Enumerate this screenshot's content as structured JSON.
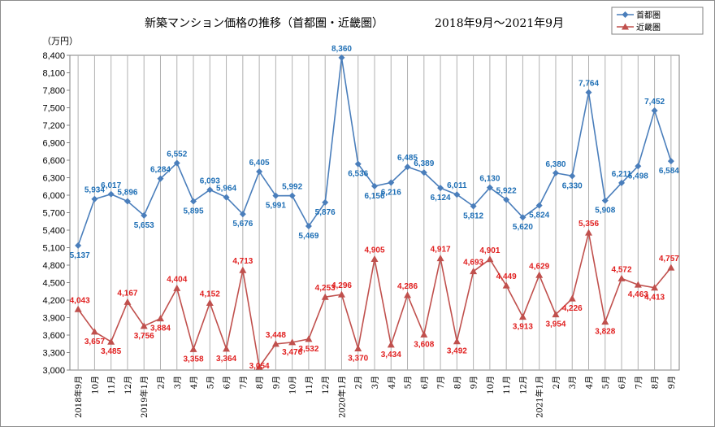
{
  "chart_data": {
    "type": "line",
    "title": "新築マンション価格の推移（首都圏・近畿圏）",
    "period": "2018年9月～2021年9月",
    "ylabel": "（万円）",
    "ylim": [
      3000,
      8400
    ],
    "yticks": [
      3000,
      3300,
      3600,
      3900,
      4200,
      4500,
      4800,
      5100,
      5400,
      5700,
      6000,
      6300,
      6600,
      6900,
      7200,
      7500,
      7800,
      8100,
      8400
    ],
    "ytick_labels": [
      "3,000",
      "3,300",
      "3,600",
      "3,900",
      "4,200",
      "4,500",
      "4,800",
      "5,100",
      "5,400",
      "5,700",
      "6,000",
      "6,300",
      "6,600",
      "6,900",
      "7,200",
      "7,500",
      "7,800",
      "8,100",
      "8,400"
    ],
    "categories": [
      "2018年9月",
      "10月",
      "11月",
      "12月",
      "2019年1月",
      "2月",
      "3月",
      "4月",
      "5月",
      "6月",
      "7月",
      "8月",
      "9月",
      "10月",
      "11月",
      "12月",
      "2020年1月",
      "2月",
      "3月",
      "4月",
      "5月",
      "6月",
      "7月",
      "8月",
      "9月",
      "10月",
      "11月",
      "12月",
      "2021年1月",
      "2月",
      "3月",
      "4月",
      "5月",
      "6月",
      "7月",
      "8月",
      "9月"
    ],
    "grid": true,
    "legend_position": "top-right",
    "series": [
      {
        "name": "首都圏",
        "color": "#4a7ebb",
        "label_color": "#1f6fb5",
        "marker": "diamond",
        "values": [
          5137,
          5934,
          6017,
          5896,
          5653,
          6284,
          6552,
          5895,
          6093,
          5964,
          5676,
          6405,
          5991,
          5992,
          5469,
          5876,
          8360,
          6536,
          6156,
          6216,
          6485,
          6389,
          6124,
          6011,
          5812,
          6130,
          5922,
          5620,
          5824,
          6380,
          6330,
          7764,
          5908,
          6211,
          6498,
          7452,
          6584
        ],
        "labels": [
          "5,137",
          "5,934",
          "6,017",
          "5,896",
          "5,653",
          "6,284",
          "6,552",
          "5,895",
          "6,093",
          "5,964",
          "5,676",
          "6,405",
          "5,991",
          "5,992",
          "5,469",
          "5,876",
          "8,360",
          "6,536",
          "6,156",
          "6,216",
          "6,485",
          "6,389",
          "6,124",
          "6,011",
          "5,812",
          "6,130",
          "5,922",
          "5,620",
          "5,824",
          "6,380",
          "6,330",
          "7,764",
          "5,908",
          "6,211",
          "6,498",
          "7,452",
          "6,584"
        ]
      },
      {
        "name": "近畿圏",
        "color": "#c0504d",
        "label_color": "#e02020",
        "marker": "triangle",
        "values": [
          4043,
          3657,
          3485,
          4167,
          3756,
          3884,
          4404,
          3358,
          4152,
          3364,
          4713,
          3054,
          3448,
          3476,
          3532,
          4253,
          4296,
          3370,
          4905,
          3434,
          4286,
          3608,
          4917,
          3492,
          4693,
          4901,
          4449,
          3913,
          4629,
          3954,
          4226,
          5356,
          3828,
          4572,
          4463,
          4413,
          4757
        ],
        "labels": [
          "4,043",
          "3,657",
          "3,485",
          "4,167",
          "3,756",
          "3,884",
          "4,404",
          "3,358",
          "4,152",
          "3,364",
          "4,713",
          "3,054",
          "3,448",
          "3,476",
          "3,532",
          "4,253",
          "4,296",
          "3,370",
          "4,905",
          "3,434",
          "4,286",
          "3,608",
          "4,917",
          "3,492",
          "4,693",
          "4,901",
          "4,449",
          "3,913",
          "4,629",
          "3,954",
          "4,226",
          "5,356",
          "3,828",
          "4,572",
          "4,463",
          "4,413",
          "4,757"
        ]
      }
    ]
  }
}
